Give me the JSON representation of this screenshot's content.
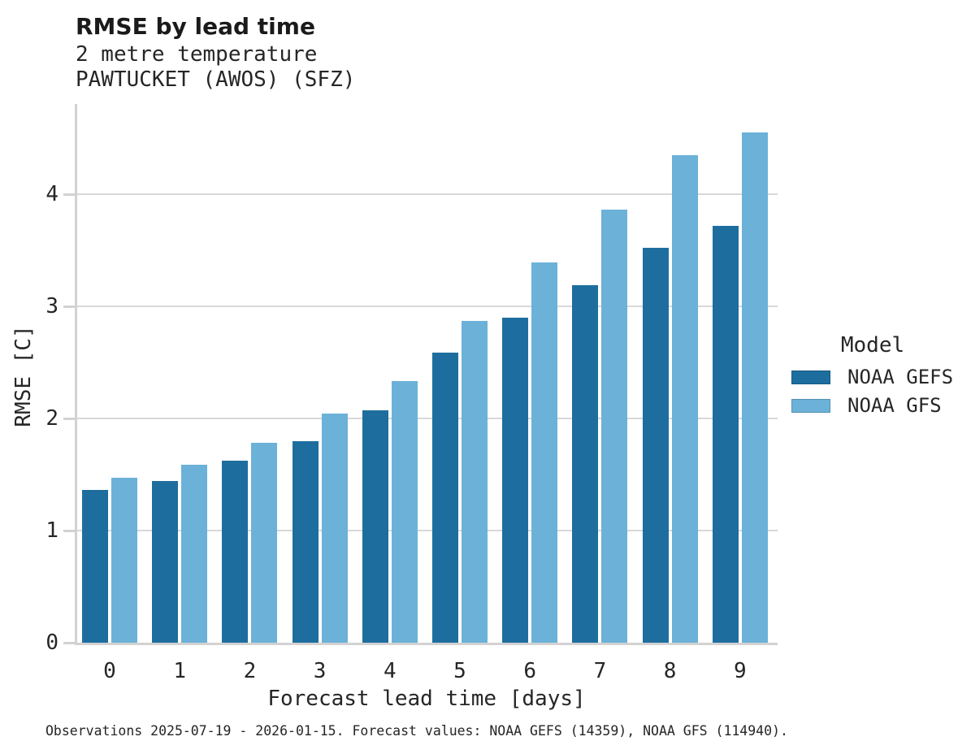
{
  "title": "RMSE by lead time",
  "subtitle_lines": [
    "2 metre temperature",
    "PAWTUCKET (AWOS) (SFZ)"
  ],
  "caption": "Observations 2025-07-19 - 2026-01-15. Forecast values: NOAA GEFS (14359), NOAA GFS (114940).",
  "legend": {
    "title": "Model",
    "entries": [
      {
        "label": "NOAA GEFS",
        "color": "#1d6e9e"
      },
      {
        "label": "NOAA GFS",
        "color": "#6bb1d8"
      }
    ]
  },
  "colors": {
    "gefs": "#1d6e9e",
    "gfs": "#6bb1d8",
    "gridline": "#d8d8d8",
    "spine": "#d2d2d2",
    "text": "#262626"
  },
  "chart_data": {
    "type": "bar",
    "title": "RMSE by lead time",
    "subtitle": "2 metre temperature",
    "station": "PAWTUCKET (AWOS) (SFZ)",
    "categories": [
      "0",
      "1",
      "2",
      "3",
      "4",
      "5",
      "6",
      "7",
      "8",
      "9"
    ],
    "series": [
      {
        "name": "NOAA GEFS",
        "color": "#1d6e9e",
        "values": [
          1.36,
          1.44,
          1.62,
          1.8,
          2.07,
          2.59,
          2.9,
          3.19,
          3.52,
          3.72
        ]
      },
      {
        "name": "NOAA GFS",
        "color": "#6bb1d8",
        "values": [
          1.47,
          1.59,
          1.78,
          2.04,
          2.33,
          2.87,
          3.39,
          3.86,
          4.35,
          4.55
        ]
      }
    ],
    "xlabel": "Forecast lead time [days]",
    "ylabel": "RMSE [C]",
    "ylim": [
      0,
      4.8
    ],
    "yticks": [
      0,
      1,
      2,
      3,
      4
    ],
    "grid": true,
    "legend_position": "right"
  }
}
